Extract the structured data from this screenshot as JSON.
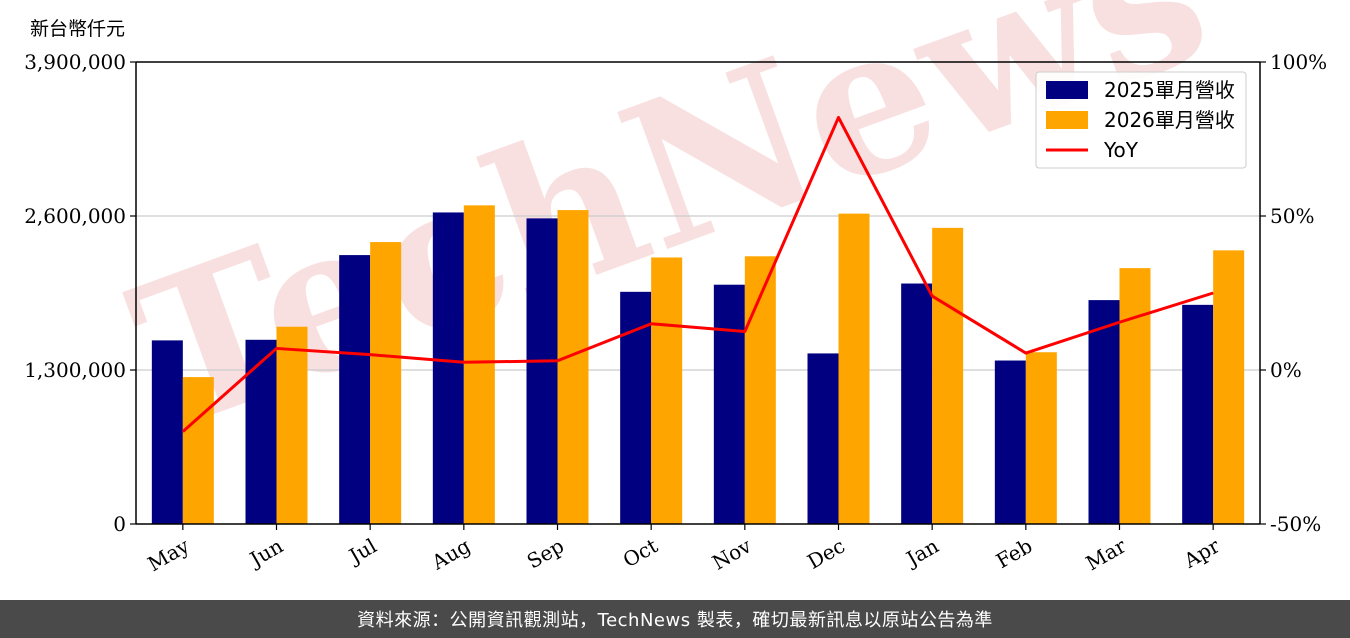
{
  "unit_label": "新台幣仟元",
  "footer": {
    "text": "資料來源：公開資訊觀測站，TechNews 製表，確切最新訊息以原站公告為準"
  },
  "watermark": {
    "text": "TechNews",
    "color": "#f4c6c6"
  },
  "chart_data": {
    "type": "bar",
    "categories": [
      "May",
      "Jun",
      "Jul",
      "Aug",
      "Sep",
      "Oct",
      "Nov",
      "Dec",
      "Jan",
      "Feb",
      "Mar",
      "Apr"
    ],
    "series": [
      {
        "name": "2025單月營收",
        "type": "bar",
        "color": "#000080",
        "values": [
          1550000,
          1555000,
          2270000,
          2630000,
          2580000,
          1960000,
          2020000,
          1440000,
          2030000,
          1380000,
          1890000,
          1850000
        ]
      },
      {
        "name": "2026單月營收",
        "type": "bar",
        "color": "#ffa500",
        "values": [
          1240000,
          1665000,
          2380000,
          2690000,
          2650000,
          2250000,
          2260000,
          2620000,
          2500000,
          1450000,
          2160000,
          2310000
        ]
      },
      {
        "name": "YoY",
        "type": "line",
        "axis": "right",
        "color": "#ff0000",
        "values": [
          -20,
          7,
          5,
          2.5,
          3,
          15,
          12.5,
          82,
          24,
          5.5,
          15.5,
          25
        ]
      }
    ],
    "ylim": [
      0,
      3900000
    ],
    "yticks": [
      "0",
      "1,300,000",
      "2,600,000",
      "3,900,000"
    ],
    "ytick_values": [
      0,
      1300000,
      2600000,
      3900000
    ],
    "y2lim": [
      -50,
      100
    ],
    "y2ticks": [
      "-50%",
      "0%",
      "50%",
      "100%"
    ],
    "y2tick_values": [
      -50,
      0,
      50,
      100
    ],
    "grid": "horizontal",
    "legend_position": "top-right"
  }
}
